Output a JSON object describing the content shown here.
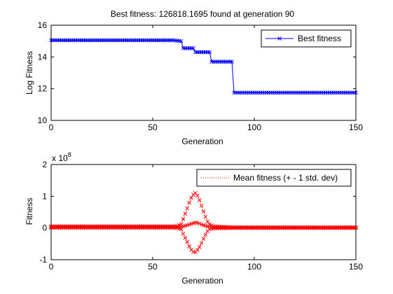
{
  "figure": {
    "background": "#ffffff"
  },
  "chart_data": [
    {
      "type": "line",
      "title": "Best fitness: 126818.1695 found at generation 90",
      "xlabel": "Generation",
      "ylabel": "Log Fitness",
      "xlim": [
        0,
        150
      ],
      "ylim": [
        10,
        16
      ],
      "xticks": [
        "0",
        "50",
        "100",
        "150"
      ],
      "yticks": [
        "10",
        "12",
        "14",
        "16"
      ],
      "grid": false,
      "legend_position": "top-right",
      "series": [
        {
          "name": "Best fitness",
          "color": "#0000ff",
          "marker": "x",
          "line_style": "solid",
          "x": [
            0,
            60,
            64,
            65,
            70,
            71,
            78,
            79,
            89,
            90,
            150
          ],
          "y": [
            15.05,
            15.05,
            15.0,
            14.55,
            14.55,
            14.3,
            14.3,
            13.7,
            13.7,
            11.75,
            11.75
          ]
        }
      ]
    },
    {
      "type": "line",
      "title": "",
      "xlabel": "Generation",
      "ylabel": "Fitness",
      "exponent_label": "x 10",
      "exponent_power": "8",
      "xlim": [
        0,
        150
      ],
      "ylim": [
        -1,
        2
      ],
      "xticks": [
        "0",
        "50",
        "100",
        "150"
      ],
      "yticks": [
        "-1",
        "0",
        "1",
        "2"
      ],
      "grid": false,
      "legend_position": "top-right",
      "series": [
        {
          "name": "Mean fitness (+ - 1 std. dev)",
          "color": "#ff0000",
          "marker": "x",
          "line_style": "dotted",
          "x": [
            0,
            60,
            62,
            64,
            65,
            66,
            67,
            68,
            69,
            70,
            71,
            72,
            73,
            74,
            75,
            76,
            77,
            78,
            80,
            90,
            150
          ],
          "mean": [
            0.03,
            0.03,
            0.03,
            0.04,
            0.05,
            0.07,
            0.09,
            0.11,
            0.13,
            0.15,
            0.17,
            0.16,
            0.14,
            0.11,
            0.09,
            0.07,
            0.05,
            0.04,
            0.02,
            0.01,
            0.01
          ],
          "upper": [
            0.05,
            0.05,
            0.06,
            0.12,
            0.28,
            0.45,
            0.62,
            0.8,
            0.95,
            1.05,
            1.1,
            1.02,
            0.88,
            0.7,
            0.52,
            0.35,
            0.2,
            0.12,
            0.05,
            0.02,
            0.02
          ],
          "lower": [
            0.01,
            0.01,
            0.0,
            -0.04,
            -0.18,
            -0.31,
            -0.44,
            -0.58,
            -0.69,
            -0.75,
            -0.76,
            -0.7,
            -0.6,
            -0.48,
            -0.34,
            -0.21,
            -0.1,
            -0.04,
            -0.01,
            0.0,
            0.0
          ]
        }
      ]
    }
  ]
}
